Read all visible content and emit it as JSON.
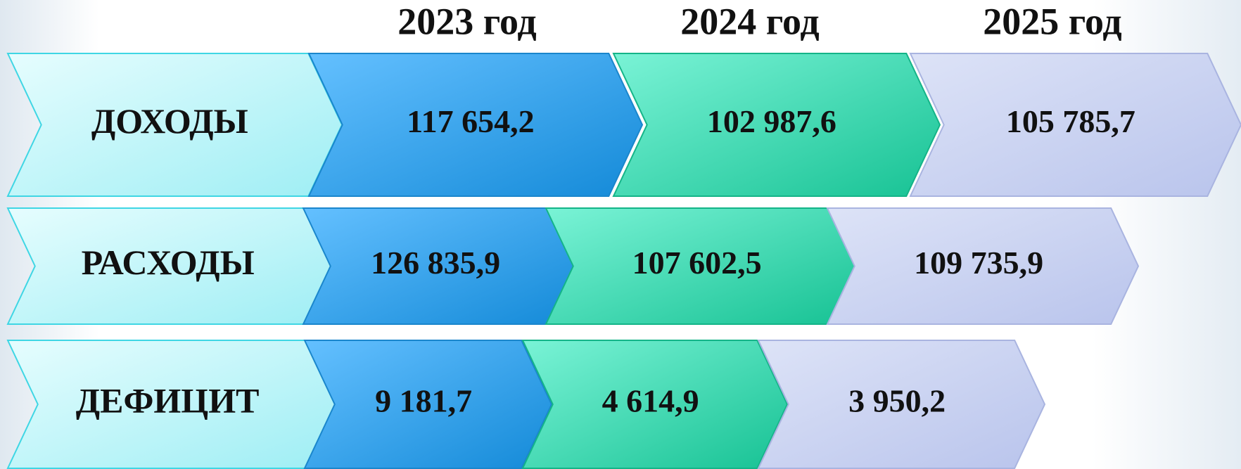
{
  "header": {
    "years": [
      "2023 год",
      "2024 год",
      "2025 год"
    ]
  },
  "rows": [
    {
      "label": "ДОХОДЫ",
      "values": [
        "117 654,2",
        "102 987,6",
        "105 785,7"
      ]
    },
    {
      "label": "РАСХОДЫ",
      "values": [
        "126 835,9",
        "107 602,5",
        "109 735,9"
      ]
    },
    {
      "label": "ДЕФИЦИТ",
      "values": [
        "9 181,7",
        "4 614,9",
        "3 950,2"
      ]
    }
  ]
}
